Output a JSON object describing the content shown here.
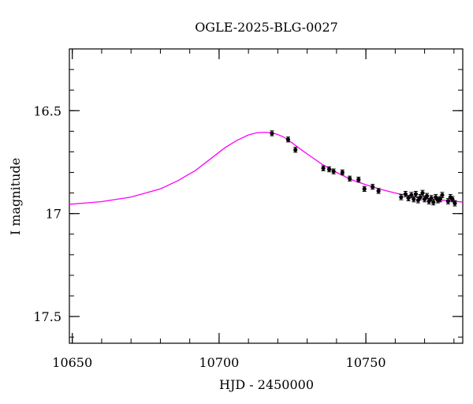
{
  "chart_data": {
    "type": "scatter",
    "title": "OGLE-2025-BLG-0027",
    "xlabel": "HJD - 2450000",
    "ylabel": "I magnitude",
    "xlim": [
      10649,
      10783
    ],
    "ylim": [
      17.63,
      16.2
    ],
    "y_inverted": true,
    "x_ticks": [
      10650,
      10700,
      10750
    ],
    "x_tick_labels": [
      "10650",
      "10700",
      "10750"
    ],
    "y_ticks": [
      16.5,
      17,
      17.5
    ],
    "y_tick_labels": [
      "16.5",
      "17",
      "17.5"
    ],
    "grid": false,
    "series": [
      {
        "kind": "points",
        "color": "#000000",
        "x": [
          10718.0,
          10723.5,
          10726.0,
          10735.5,
          10737.5,
          10739.0,
          10742.0,
          10744.5,
          10747.5,
          10749.5,
          10752.3,
          10754.3,
          10762.0,
          10763.5,
          10764.5,
          10765.5,
          10766.3,
          10767.0,
          10767.8,
          10768.5,
          10769.3,
          10770.0,
          10770.8,
          10771.5,
          10772.3,
          10773.0,
          10773.8,
          10774.5,
          10775.3,
          10776.0,
          10778.0,
          10778.8,
          10779.5,
          10780.3
        ],
        "y": [
          16.61,
          16.64,
          16.69,
          16.78,
          16.785,
          16.795,
          16.8,
          16.83,
          16.835,
          16.88,
          16.87,
          16.89,
          16.92,
          16.905,
          16.925,
          16.91,
          16.93,
          16.905,
          16.935,
          16.92,
          16.9,
          16.93,
          16.915,
          16.94,
          16.925,
          16.945,
          16.92,
          16.935,
          16.93,
          16.91,
          16.94,
          16.92,
          16.93,
          16.95
        ],
        "yerr": [
          0.012,
          0.012,
          0.012,
          0.012,
          0.012,
          0.012,
          0.012,
          0.012,
          0.012,
          0.012,
          0.012,
          0.012,
          0.013,
          0.013,
          0.013,
          0.013,
          0.013,
          0.013,
          0.013,
          0.013,
          0.013,
          0.013,
          0.013,
          0.013,
          0.013,
          0.013,
          0.013,
          0.013,
          0.013,
          0.013,
          0.013,
          0.013,
          0.013,
          0.013
        ]
      },
      {
        "kind": "model",
        "color": "#ff00ff",
        "x": [
          10649,
          10660,
          10670,
          10680,
          10686,
          10692,
          10697,
          10702,
          10706,
          10710,
          10713,
          10716,
          10718,
          10720,
          10722,
          10725,
          10728,
          10731,
          10735,
          10740,
          10745,
          10750,
          10755,
          10760,
          10765,
          10770,
          10775,
          10780,
          10783
        ],
        "y": [
          16.955,
          16.942,
          16.92,
          16.88,
          16.84,
          16.79,
          16.735,
          16.68,
          16.645,
          16.618,
          16.607,
          16.605,
          16.608,
          16.616,
          16.628,
          16.658,
          16.69,
          16.72,
          16.76,
          16.8,
          16.835,
          16.86,
          16.882,
          16.9,
          16.915,
          16.926,
          16.934,
          16.94,
          16.944
        ]
      }
    ]
  }
}
